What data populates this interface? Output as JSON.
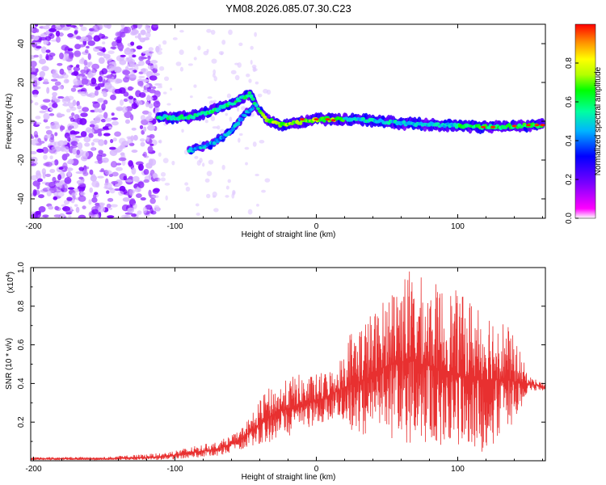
{
  "chart_data": [
    {
      "type": "heatmap",
      "title": "YM08.2026.085.07.30.C23",
      "xlabel": "Height of straight line (km)",
      "ylabel": "Frequency (Hz)",
      "xlim": [
        -202,
        162
      ],
      "ylim": [
        -50,
        50
      ],
      "xticks": [
        -200,
        -100,
        0,
        100
      ],
      "yticks": [
        -40,
        -20,
        0,
        20,
        40
      ],
      "colorbar": {
        "label": "Normalized spectral amplitude",
        "range": [
          0,
          1
        ],
        "ticks": [
          "0.0",
          "0.2",
          "0.4",
          "0.6",
          "0.8"
        ],
        "tick_values": [
          0.0,
          0.2,
          0.4,
          0.6,
          0.8
        ],
        "colormap": [
          "#ffffff",
          "#ff00ff",
          "#7a00ff",
          "#0000ff",
          "#00b4ff",
          "#00ffa0",
          "#00ff00",
          "#b4ff00",
          "#ffff00",
          "#ff8c00",
          "#ff0000"
        ]
      },
      "features": [
        {
          "name": "diffuse noise",
          "x_range": [
            -202,
            -112
          ],
          "y_range": [
            -50,
            50
          ],
          "amplitude": 0.15
        },
        {
          "name": "main trace",
          "points": [
            [
              -112,
              2
            ],
            [
              -90,
              2
            ],
            [
              -75,
              5
            ],
            [
              -60,
              9
            ],
            [
              -47,
              14
            ],
            [
              -40,
              5
            ],
            [
              -35,
              1
            ],
            [
              -25,
              -2
            ],
            [
              0,
              1
            ],
            [
              30,
              1
            ],
            [
              60,
              -1
            ],
            [
              90,
              -2
            ],
            [
              120,
              -3
            ],
            [
              160,
              -2
            ]
          ]
        },
        {
          "name": "branch trace",
          "points": [
            [
              -90,
              -15
            ],
            [
              -75,
              -12
            ],
            [
              -60,
              -5
            ],
            [
              -50,
              4
            ],
            [
              -42,
              8
            ]
          ]
        }
      ]
    },
    {
      "type": "line",
      "xlabel": "Height of straight line (km)",
      "ylabel": "SNR (10 * v/v)",
      "y_multiplier": "(x10",
      "y_multiplier_exp": "4",
      "y_multiplier_close": ")",
      "xlim": [
        -202,
        162
      ],
      "ylim": [
        0,
        1.0
      ],
      "xticks": [
        -200,
        -100,
        0,
        100
      ],
      "yticks": [
        0.2,
        0.4,
        0.6,
        0.8,
        1.0
      ],
      "color": "#e83030",
      "series": [
        {
          "name": "SNR",
          "envelope": [
            {
              "x": -202,
              "mean": 0.01,
              "max": 0.02
            },
            {
              "x": -150,
              "mean": 0.01,
              "max": 0.02
            },
            {
              "x": -110,
              "mean": 0.02,
              "max": 0.04
            },
            {
              "x": -90,
              "mean": 0.04,
              "max": 0.07
            },
            {
              "x": -70,
              "mean": 0.06,
              "max": 0.1
            },
            {
              "x": -55,
              "mean": 0.1,
              "max": 0.15
            },
            {
              "x": -45,
              "mean": 0.16,
              "max": 0.25
            },
            {
              "x": -35,
              "mean": 0.22,
              "max": 0.37
            },
            {
              "x": -25,
              "mean": 0.26,
              "max": 0.4
            },
            {
              "x": -15,
              "mean": 0.28,
              "max": 0.45
            },
            {
              "x": -5,
              "mean": 0.3,
              "max": 0.44
            },
            {
              "x": 5,
              "mean": 0.32,
              "max": 0.46
            },
            {
              "x": 15,
              "mean": 0.36,
              "max": 0.5
            },
            {
              "x": 25,
              "mean": 0.4,
              "max": 0.7
            },
            {
              "x": 35,
              "mean": 0.42,
              "max": 0.75
            },
            {
              "x": 45,
              "mean": 0.48,
              "max": 0.8
            },
            {
              "x": 55,
              "mean": 0.5,
              "max": 0.95
            },
            {
              "x": 65,
              "mean": 0.52,
              "max": 1.0
            },
            {
              "x": 75,
              "mean": 0.5,
              "max": 0.95
            },
            {
              "x": 85,
              "mean": 0.48,
              "max": 0.92
            },
            {
              "x": 95,
              "mean": 0.46,
              "max": 0.9
            },
            {
              "x": 105,
              "mean": 0.44,
              "max": 0.85
            },
            {
              "x": 115,
              "mean": 0.42,
              "max": 0.85
            },
            {
              "x": 125,
              "mean": 0.42,
              "max": 0.8
            },
            {
              "x": 135,
              "mean": 0.42,
              "max": 0.72
            },
            {
              "x": 145,
              "mean": 0.4,
              "max": 0.55
            },
            {
              "x": 150,
              "mean": 0.4,
              "max": 0.44
            },
            {
              "x": 162,
              "mean": 0.38,
              "max": 0.4
            }
          ]
        }
      ]
    }
  ]
}
